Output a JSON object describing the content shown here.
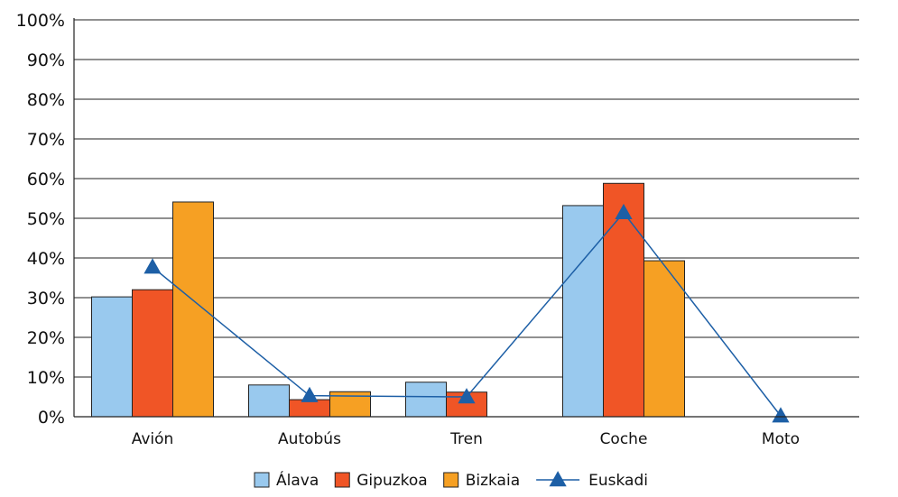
{
  "chart_data": {
    "type": "bar",
    "categories": [
      "Avión",
      "Autobús",
      "Tren",
      "Coche",
      "Moto"
    ],
    "ylim": [
      0,
      100
    ],
    "yticks": [
      0,
      10,
      20,
      30,
      40,
      50,
      60,
      70,
      80,
      90,
      100
    ],
    "ytick_labels": [
      "0%",
      "10%",
      "20%",
      "30%",
      "40%",
      "50%",
      "60%",
      "70%",
      "80%",
      "90%",
      "100%"
    ],
    "grid": true,
    "legend_position": "bottom",
    "series": [
      {
        "name": "Álava",
        "kind": "bar",
        "color": "#99c9ee",
        "values": [
          30.2,
          8.0,
          8.7,
          53.2,
          0
        ]
      },
      {
        "name": "Gipuzkoa",
        "kind": "bar",
        "color": "#f05526",
        "values": [
          32.0,
          4.3,
          6.2,
          58.8,
          0
        ]
      },
      {
        "name": "Bizkaia",
        "kind": "bar",
        "color": "#f6a023",
        "values": [
          54.1,
          6.3,
          null,
          39.3,
          0
        ]
      },
      {
        "name": "Euskadi",
        "kind": "line",
        "color": "#1d5fa6",
        "values": [
          37.7,
          5.3,
          5.0,
          51.4,
          0.2
        ]
      }
    ]
  }
}
